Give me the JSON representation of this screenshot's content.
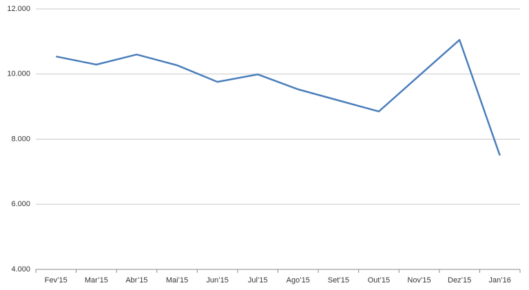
{
  "chart_data": {
    "type": "line",
    "categories": [
      "Fev’15",
      "Mar’15",
      "Abr’15",
      "Mai’15",
      "Jun’15",
      "Jul’15",
      "Ago’15",
      "Set’15",
      "Out’15",
      "Nov’15",
      "Dez’15",
      "Jan’16"
    ],
    "series": [
      {
        "color": "#4a7ebb",
        "values": [
          10540,
          10290,
          10600,
          10270,
          9760,
          9990,
          9530,
          9190,
          8850,
          9950,
          11050,
          7500
        ]
      }
    ],
    "ylim": [
      4000,
      12000
    ],
    "yticks": [
      {
        "value": 4000,
        "label": "4.000"
      },
      {
        "value": 6000,
        "label": "6.000"
      },
      {
        "value": 8000,
        "label": "8.000"
      },
      {
        "value": 10000,
        "label": "10.000"
      },
      {
        "value": 12000,
        "label": "12.000"
      }
    ],
    "grid": true
  }
}
